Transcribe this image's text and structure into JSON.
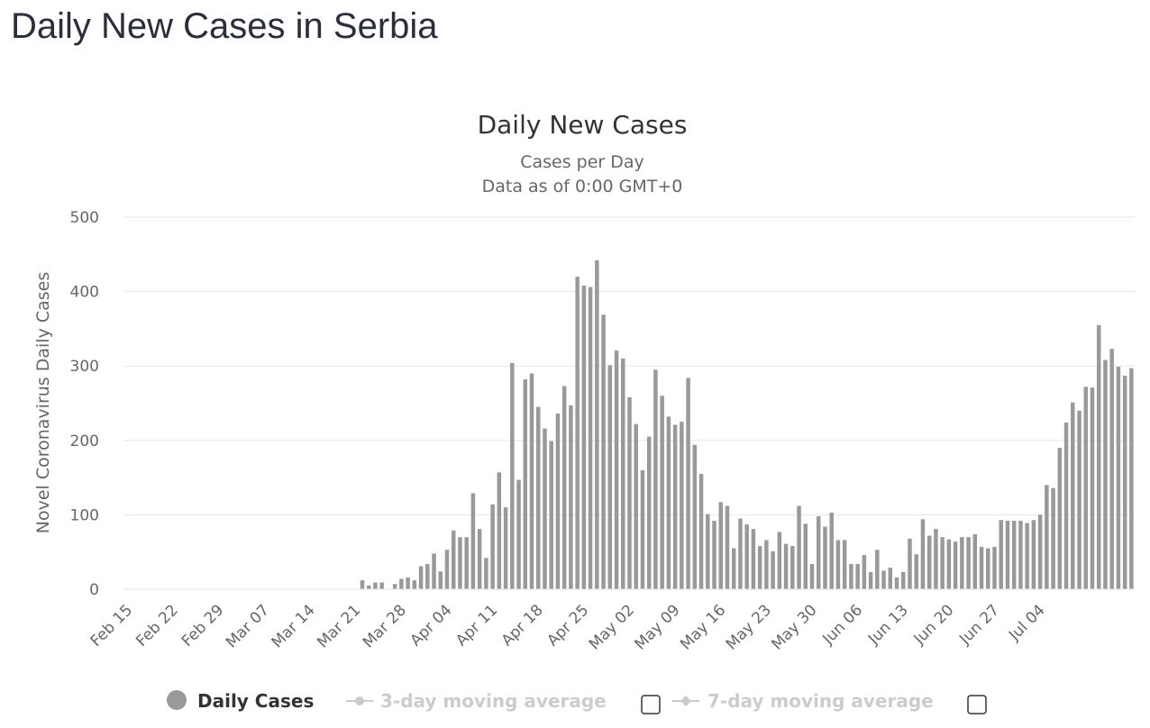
{
  "page": {
    "title": "Daily New Cases in Serbia"
  },
  "chart_data": {
    "type": "bar",
    "title": "Daily New Cases",
    "subtitle_lines": [
      "Cases per Day",
      "Data as of 0:00 GMT+0"
    ],
    "ylabel": "Novel Coronavirus Daily Cases",
    "ylim": [
      0,
      500
    ],
    "yticks": [
      0,
      100,
      200,
      300,
      400,
      500
    ],
    "x_start": "2020-02-15",
    "x_tick_labels": [
      "Feb 15",
      "Feb 22",
      "Feb 29",
      "Mar 07",
      "Mar 14",
      "Mar 21",
      "Mar 28",
      "Apr 04",
      "Apr 11",
      "Apr 18",
      "Apr 25",
      "May 02",
      "May 09",
      "May 16",
      "May 23",
      "May 30",
      "Jun 06",
      "Jun 13",
      "Jun 20",
      "Jun 27",
      "Jul 04"
    ],
    "grid": true,
    "bar_color": "#999999",
    "series": [
      {
        "name": "Daily Cases",
        "values": [
          0,
          0,
          0,
          0,
          0,
          0,
          0,
          0,
          0,
          0,
          0,
          0,
          0,
          0,
          0,
          0,
          0,
          0,
          0,
          0,
          0,
          0,
          0,
          0,
          0,
          0,
          0,
          0,
          0,
          0,
          0,
          0,
          0,
          0,
          0,
          0,
          12,
          5,
          9,
          9,
          0,
          7,
          14,
          16,
          12,
          31,
          34,
          48,
          24,
          53,
          79,
          70,
          70,
          129,
          81,
          42,
          114,
          157,
          110,
          304,
          147,
          282,
          290,
          245,
          216,
          199,
          236,
          273,
          247,
          420,
          408,
          406,
          442,
          369,
          301,
          321,
          310,
          258,
          222,
          160,
          205,
          295,
          260,
          232,
          221,
          225,
          284,
          194,
          155,
          101,
          92,
          117,
          112,
          55,
          95,
          87,
          81,
          58,
          66,
          51,
          77,
          61,
          58,
          112,
          88,
          34,
          98,
          84,
          103,
          66,
          66,
          34,
          34,
          46,
          23,
          53,
          25,
          29,
          16,
          23,
          68,
          47,
          94,
          72,
          81,
          70,
          67,
          64,
          70,
          70,
          74,
          57,
          55,
          57,
          93,
          92,
          92,
          92,
          89,
          93,
          100,
          140,
          136,
          190,
          224,
          251,
          240,
          272,
          271,
          355,
          308,
          323,
          299,
          287,
          297
        ]
      }
    ],
    "legend": [
      {
        "label": "Daily Cases",
        "state": "active"
      },
      {
        "label": "3-day moving average",
        "state": "hidden"
      },
      {
        "label": "7-day moving average",
        "state": "hidden"
      }
    ],
    "legend_position": "bottom"
  }
}
